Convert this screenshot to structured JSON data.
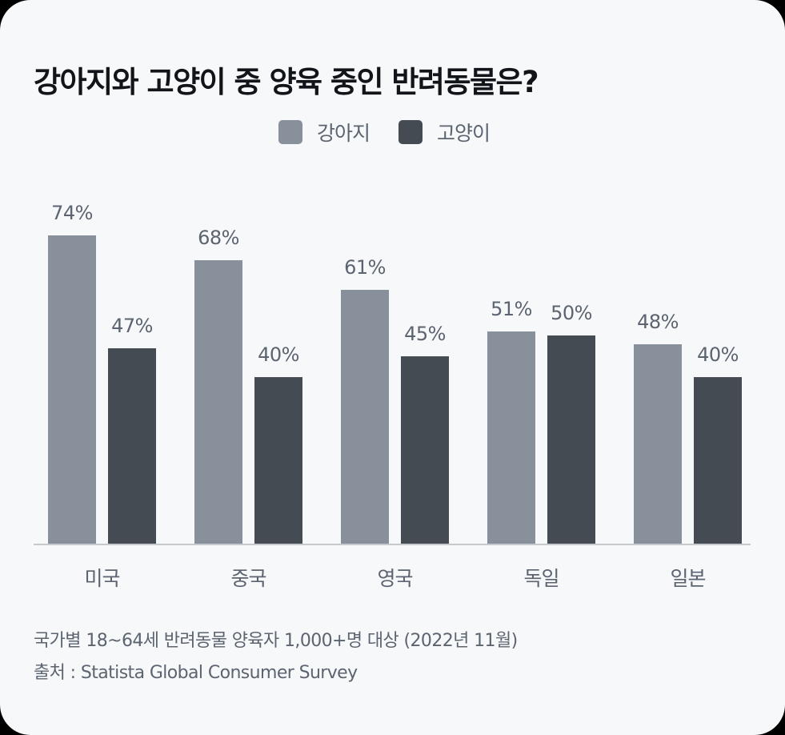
{
  "title": "강아지와 고양이 중 양육 중인 반려동물은?",
  "colors": {
    "dog": "#88919b",
    "cat": "#454b53",
    "background": "#f7f8fa",
    "label": "#5b6470",
    "axis": "#c3c9cf"
  },
  "legend": [
    {
      "label": "강아지",
      "color": "#88919b"
    },
    {
      "label": "고양이",
      "color": "#454b53"
    }
  ],
  "chart_data": {
    "type": "bar",
    "title": "강아지와 고양이 중 양육 중인 반려동물은?",
    "categories": [
      "미국",
      "중국",
      "영국",
      "독일",
      "일본"
    ],
    "series": [
      {
        "name": "강아지",
        "values": [
          74,
          68,
          61,
          51,
          48
        ],
        "labels": [
          "74%",
          "68%",
          "61%",
          "51%",
          "48%"
        ]
      },
      {
        "name": "고양이",
        "values": [
          47,
          40,
          45,
          50,
          40
        ],
        "labels": [
          "47%",
          "40%",
          "45%",
          "50%",
          "40%"
        ]
      }
    ],
    "xlabel": "",
    "ylabel": "",
    "ylim": [
      0,
      74
    ],
    "grid": false,
    "legend_position": "top"
  },
  "footnotes": {
    "note": "국가별 18~64세 반려동물 양육자 1,000+명 대상 (2022년 11월)",
    "source": "출처 : Statista Global Consumer Survey"
  }
}
